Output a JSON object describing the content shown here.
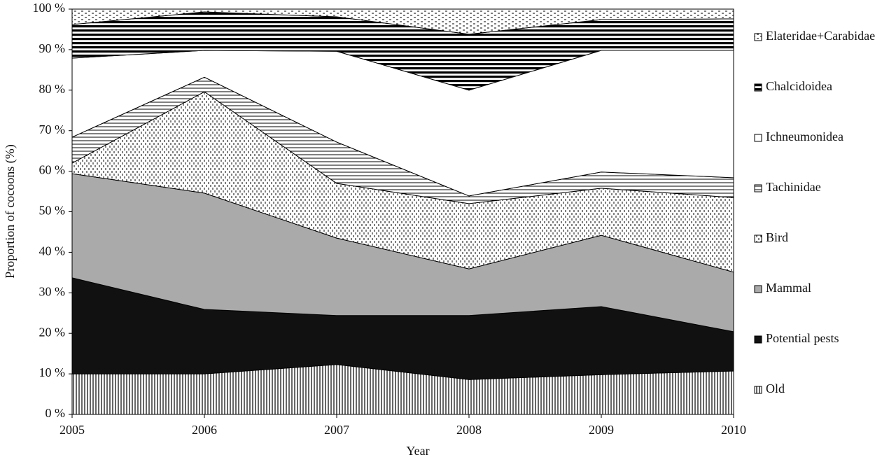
{
  "chart_data": {
    "type": "area",
    "stacked": true,
    "x_label": "Year",
    "y_label": "Proportion of cocoons (%)",
    "x": [
      2005,
      2006,
      2007,
      2008,
      2009,
      2010
    ],
    "xlim": [
      2005,
      2010
    ],
    "xticks": [
      2005,
      2006,
      2007,
      2008,
      2009,
      2010
    ],
    "ylim": [
      0,
      100
    ],
    "yticks": [
      {
        "value": 0,
        "label": "0 %"
      },
      {
        "value": 10,
        "label": "10 %"
      },
      {
        "value": 20,
        "label": "20 %"
      },
      {
        "value": 30,
        "label": "30 %"
      },
      {
        "value": 40,
        "label": "40 %"
      },
      {
        "value": 50,
        "label": "50 %"
      },
      {
        "value": 60,
        "label": "60 %"
      },
      {
        "value": 70,
        "label": "70 %"
      },
      {
        "value": 80,
        "label": "80 %"
      },
      {
        "value": 90,
        "label": "90 %"
      },
      {
        "value": 100,
        "label": "100 %"
      }
    ],
    "legend": "right",
    "series": [
      {
        "name": "Old",
        "color": "#000000",
        "pattern": "vertical-lines",
        "values": [
          10.0,
          10.0,
          12.3,
          8.6,
          9.8,
          10.7
        ]
      },
      {
        "name": "Potential pests",
        "color": "#111111",
        "pattern": "solid",
        "values": [
          23.7,
          15.9,
          12.1,
          15.8,
          16.8,
          9.7
        ]
      },
      {
        "name": "Mammal",
        "color": "#aaaaaa",
        "pattern": "solid",
        "values": [
          25.7,
          28.7,
          19.1,
          11.5,
          17.6,
          14.7
        ]
      },
      {
        "name": "Bird",
        "color": "#000000",
        "pattern": "dots",
        "values": [
          2.6,
          25.0,
          13.5,
          16.1,
          11.6,
          18.4
        ]
      },
      {
        "name": "Tachinidae",
        "color": "#000000",
        "pattern": "horizontal-lines",
        "values": [
          6.4,
          3.6,
          10.2,
          1.9,
          4.0,
          4.9
        ]
      },
      {
        "name": "Ichneumonidea",
        "color": "#ffffff",
        "pattern": "solid",
        "values": [
          19.5,
          6.6,
          22.4,
          26.1,
          30.0,
          31.4
        ]
      },
      {
        "name": "Chalcidoidea",
        "color": "#000000",
        "pattern": "thick-horizontal",
        "values": [
          8.3,
          9.5,
          8.5,
          13.8,
          7.6,
          7.8
        ]
      },
      {
        "name": "Elateridae+Carabidae",
        "color": "#000000",
        "pattern": "dashes",
        "values": [
          3.8,
          0.7,
          1.9,
          6.2,
          2.6,
          2.4
        ]
      }
    ]
  }
}
